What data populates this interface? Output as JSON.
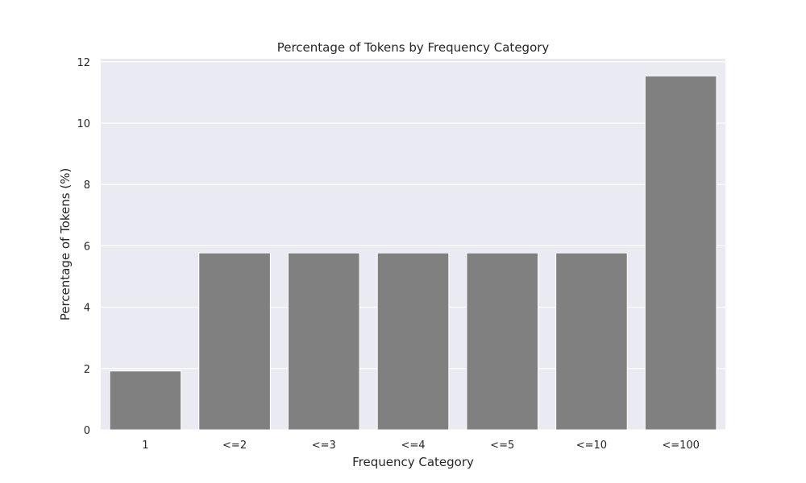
{
  "chart_data": {
    "type": "bar",
    "title": "Percentage of Tokens by Frequency Category",
    "xlabel": "Frequency Category",
    "ylabel": "Percentage of Tokens (%)",
    "categories": [
      "1",
      "<=2",
      "<=3",
      "<=4",
      "<=5",
      "<=10",
      "<=100"
    ],
    "values": [
      1.92,
      5.77,
      5.77,
      5.77,
      5.77,
      5.77,
      11.54
    ],
    "ylim": [
      0,
      12.1
    ],
    "yticks": [
      0,
      2,
      4,
      6,
      8,
      10,
      12
    ],
    "grid": true,
    "legend": "none",
    "colors": {
      "bar": "#808080",
      "bar_edge": "#ffffff",
      "plot_background": "#eaeaf2",
      "grid": "#ffffff",
      "text": "#262626"
    }
  }
}
